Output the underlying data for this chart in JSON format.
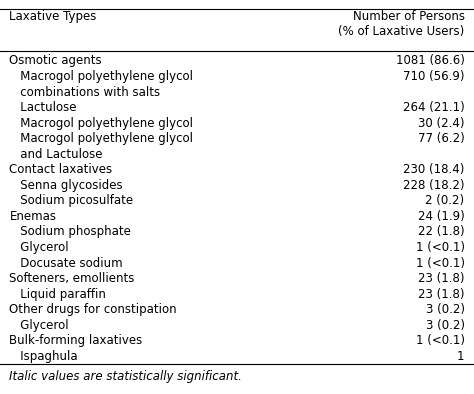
{
  "col1_header": "Laxative Types",
  "col2_header": "Number of Persons\n(% of Laxative Users)",
  "rows": [
    {
      "label": "Osmotic agents",
      "value": "1081 (86.6)",
      "indent": 0
    },
    {
      "label": "Macrogol polyethylene glycol",
      "value": "710 (56.9)",
      "indent": 1,
      "extra_line": "   combinations with salts"
    },
    {
      "label": "Lactulose",
      "value": "264 (21.1)",
      "indent": 1
    },
    {
      "label": "Macrogol polyethylene glycol",
      "value": "30 (2.4)",
      "indent": 1
    },
    {
      "label": "Macrogol polyethylene glycol",
      "value": "77 (6.2)",
      "indent": 1,
      "extra_line": "   and Lactulose"
    },
    {
      "label": "Contact laxatives",
      "value": "230 (18.4)",
      "indent": 0
    },
    {
      "label": "Senna glycosides",
      "value": "228 (18.2)",
      "indent": 1
    },
    {
      "label": "Sodium picosulfate",
      "value": "2 (0.2)",
      "indent": 1
    },
    {
      "label": "Enemas",
      "value": "24 (1.9)",
      "indent": 0
    },
    {
      "label": "Sodium phosphate",
      "value": "22 (1.8)",
      "indent": 1
    },
    {
      "label": "Glycerol",
      "value": "1 (<0.1)",
      "indent": 1
    },
    {
      "label": "Docusate sodium",
      "value": "1 (<0.1)",
      "indent": 1
    },
    {
      "label": "Softeners, emollients",
      "value": "23 (1.8)",
      "indent": 0
    },
    {
      "label": "Liquid paraffin",
      "value": "23 (1.8)",
      "indent": 1
    },
    {
      "label": "Other drugs for constipation",
      "value": "3 (0.2)",
      "indent": 0
    },
    {
      "label": "Glycerol",
      "value": "3 (0.2)",
      "indent": 1
    },
    {
      "label": "Bulk-forming laxatives",
      "value": "1 (<0.1)",
      "indent": 0
    },
    {
      "label": "Ispaghula",
      "value": "1",
      "indent": 1
    }
  ],
  "footnote": "Italic values are statistically significant.",
  "bg_color": "#ffffff",
  "text_color": "#000000",
  "font_size": 8.5,
  "indent_size": "   "
}
